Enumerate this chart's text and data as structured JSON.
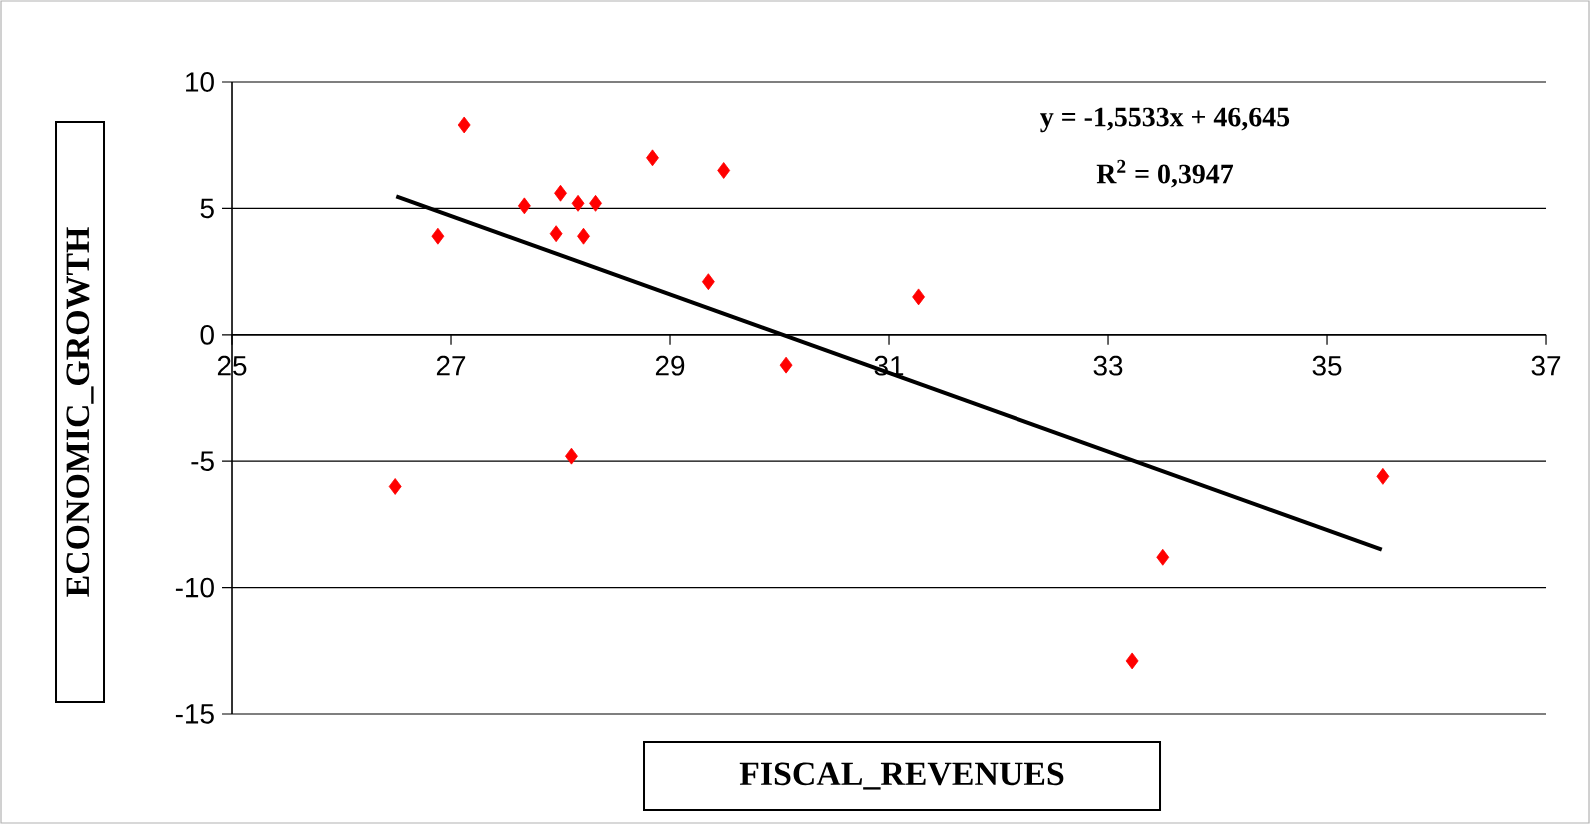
{
  "chart_data": {
    "type": "scatter",
    "xlabel": "FISCAL_REVENUES",
    "ylabel": "ECONOMIC_GROWTH",
    "xlim": [
      25,
      37
    ],
    "xticks": [
      25,
      27,
      29,
      31,
      33,
      35,
      37
    ],
    "ylim": [
      -15,
      10
    ],
    "yticks": [
      -15,
      -10,
      -5,
      0,
      5,
      10
    ],
    "grid": "y",
    "marker": "diamond",
    "series": [
      {
        "color": "#ff0000",
        "x": [
          27.12,
          26.88,
          27.67,
          28.0,
          27.96,
          28.16,
          28.21,
          28.32,
          28.84,
          29.35,
          29.49,
          30.06,
          31.27,
          26.49,
          28.1,
          33.22,
          33.5,
          35.51
        ],
        "values": [
          8.3,
          3.9,
          5.1,
          5.6,
          4.0,
          5.2,
          3.9,
          5.2,
          7.0,
          2.1,
          6.5,
          -1.2,
          1.5,
          -6.0,
          -4.8,
          -12.9,
          -8.8,
          -5.6
        ]
      },
      {
        "type": "line",
        "color": "#000000",
        "marker": "none",
        "x": [
          26.5,
          35.5
        ],
        "values": [
          5.48,
          -8.5
        ]
      }
    ],
    "annotations": [
      "y = -1,5533x + 46,645",
      "R$^{2}$ = 0,3947"
    ]
  }
}
